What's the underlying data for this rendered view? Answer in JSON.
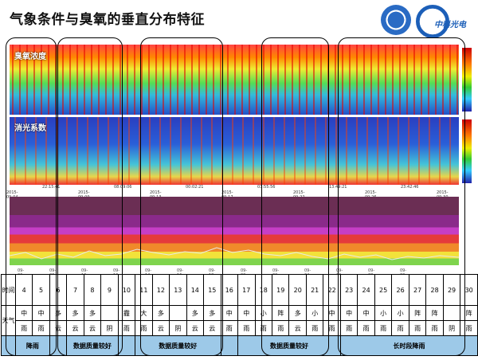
{
  "title": "气象条件与臭氧的垂直分布特征",
  "logo2_text": "中科光电",
  "panels": {
    "ozone_label": "臭氧浓度",
    "extinction_label": "消光系数"
  },
  "ticks_hm1": [
    "2015-09-04",
    "22:15:41",
    "2015-09-09",
    "08:09:06",
    "2015-09-13",
    "00:02:21",
    "2015-09-17",
    "03:55:56",
    "2015-09-22",
    "13:49:21",
    "2015-09-26",
    "23:42:46",
    "2015-09-30"
  ],
  "ticks_aqi": [
    "09-06",
    "09-08",
    "09-10",
    "09-12",
    "09-14",
    "09-16",
    "09-18",
    "09-20",
    "09-22",
    "09-24",
    "09-26",
    "09-28",
    "09-30"
  ],
  "table": {
    "time_label": "时间",
    "weather_label": "天气",
    "days": [
      "4",
      "5",
      "6",
      "7",
      "8",
      "9",
      "10",
      "11",
      "12",
      "13",
      "14",
      "15",
      "16",
      "17",
      "18",
      "19",
      "20",
      "21",
      "22",
      "23",
      "24",
      "25",
      "26",
      "27",
      "28",
      "29",
      "30"
    ],
    "weather_top": [
      "中",
      "中",
      "多",
      "多",
      "多",
      "",
      "霾",
      "大",
      "多",
      "",
      "多",
      "多",
      "中",
      "中",
      "小",
      "阵",
      "多",
      "小",
      "中",
      "中",
      "中",
      "小",
      "小",
      "阵",
      "阵",
      "",
      "阵"
    ],
    "weather_bottom": [
      "雨",
      "雨",
      "云",
      "云",
      "云",
      "阴",
      "雨",
      "雨",
      "云",
      "阴",
      "云",
      "云",
      "雨",
      "雨",
      "雨",
      "雨",
      "云",
      "雨",
      "雨",
      "雨",
      "雨",
      "雨",
      "雨",
      "雨",
      "雨",
      "阴",
      "雨"
    ],
    "categories": [
      "降雨",
      "数据质量较好",
      "数据质量较好",
      "数据质量较好",
      "长时段降雨"
    ]
  }
}
